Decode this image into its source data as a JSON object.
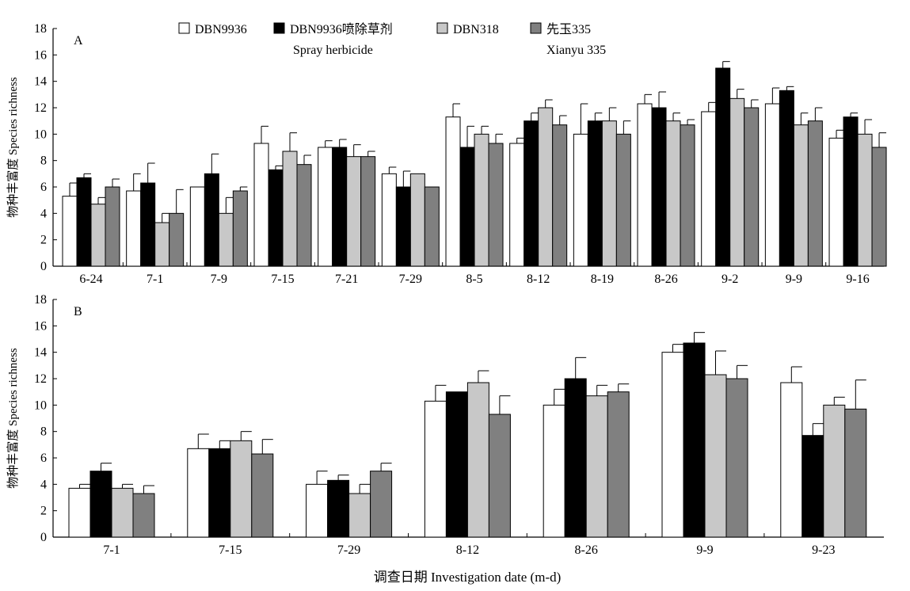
{
  "legend": [
    {
      "label": "DBN9936",
      "sublabel": "",
      "color": "#ffffff"
    },
    {
      "label": "DBN9936喷除草剂",
      "sublabel": "Spray herbicide",
      "color": "#000000"
    },
    {
      "label": "DBN318",
      "sublabel": "",
      "color": "#c8c8c8"
    },
    {
      "label": "先玉335",
      "sublabel": "Xianyu 335",
      "color": "#808080"
    }
  ],
  "x_title": "调查日期 Investigation date (m-d)",
  "chart_data": [
    {
      "type": "bar",
      "panel": "A",
      "ylabel": "物种丰富度 Species richness",
      "ylim": [
        0,
        18
      ],
      "yticks": [
        0,
        2,
        4,
        6,
        8,
        10,
        12,
        14,
        16,
        18
      ],
      "categories": [
        "6-24",
        "7-1",
        "7-9",
        "7-15",
        "7-21",
        "7-29",
        "8-5",
        "8-12",
        "8-19",
        "8-26",
        "9-2",
        "9-9",
        "9-16"
      ],
      "series": [
        {
          "name": "DBN9936",
          "values": [
            5.3,
            5.7,
            6.0,
            9.3,
            9.0,
            7.0,
            11.3,
            9.3,
            10.0,
            12.3,
            11.7,
            12.3,
            9.7
          ],
          "errors": [
            1.0,
            1.3,
            0,
            1.3,
            0.5,
            0.5,
            1.0,
            0.4,
            2.3,
            0.7,
            0.7,
            1.2,
            0.6
          ]
        },
        {
          "name": "DBN9936喷除草剂 Spray herbicide",
          "values": [
            6.7,
            6.3,
            7.0,
            7.3,
            9.0,
            6.0,
            9.0,
            11.0,
            11.0,
            12.0,
            15.0,
            13.3,
            11.3
          ],
          "errors": [
            0.3,
            1.5,
            1.5,
            0.3,
            0.6,
            1.2,
            1.6,
            0.6,
            0.6,
            1.2,
            0.5,
            0.3,
            0.3
          ]
        },
        {
          "name": "DBN318",
          "values": [
            4.7,
            3.3,
            4.0,
            8.7,
            8.3,
            7.0,
            10.0,
            12.0,
            11.0,
            11.0,
            12.7,
            10.7,
            10.0
          ],
          "errors": [
            0.5,
            0.7,
            1.2,
            1.4,
            0.9,
            0,
            0.6,
            0.6,
            1.0,
            0.6,
            0.7,
            0.9,
            1.1
          ]
        },
        {
          "name": "先玉335 Xianyu 335",
          "values": [
            6.0,
            4.0,
            5.7,
            7.7,
            8.3,
            6.0,
            9.3,
            10.7,
            10.0,
            10.7,
            12.0,
            11.0,
            9.0
          ],
          "errors": [
            0.6,
            1.8,
            0.3,
            0.7,
            0.4,
            0,
            0.7,
            0.7,
            1.0,
            0.4,
            0.6,
            1.0,
            1.1
          ]
        }
      ]
    },
    {
      "type": "bar",
      "panel": "B",
      "ylabel": "物种丰富度 Species richness",
      "ylim": [
        0,
        18
      ],
      "yticks": [
        0,
        2,
        4,
        6,
        8,
        10,
        12,
        14,
        16,
        18
      ],
      "categories": [
        "7-1",
        "7-15",
        "7-29",
        "8-12",
        "8-26",
        "9-9",
        "9-23"
      ],
      "series": [
        {
          "name": "DBN9936",
          "values": [
            3.7,
            6.7,
            4.0,
            10.3,
            10.0,
            14.0,
            11.7
          ],
          "errors": [
            0.3,
            1.1,
            1.0,
            1.2,
            1.2,
            0.6,
            1.2
          ]
        },
        {
          "name": "DBN9936喷除草剂 Spray herbicide",
          "values": [
            5.0,
            6.7,
            4.3,
            11.0,
            12.0,
            14.7,
            7.7
          ],
          "errors": [
            0.6,
            0.6,
            0.4,
            0,
            1.6,
            0.8,
            0.9
          ]
        },
        {
          "name": "DBN318",
          "values": [
            3.7,
            7.3,
            3.3,
            11.7,
            10.7,
            12.3,
            10.0
          ],
          "errors": [
            0.3,
            0.7,
            0.7,
            0.9,
            0.8,
            1.8,
            0.6
          ]
        },
        {
          "name": "先玉335 Xianyu 335",
          "values": [
            3.3,
            6.3,
            5.0,
            9.3,
            11.0,
            12.0,
            9.7
          ],
          "errors": [
            0.6,
            1.1,
            0.6,
            1.4,
            0.6,
            1.0,
            2.2
          ]
        }
      ]
    }
  ]
}
